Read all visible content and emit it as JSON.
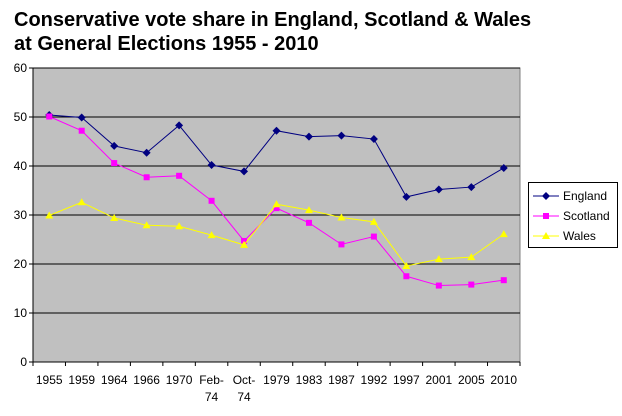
{
  "chart_data": {
    "type": "line",
    "title": "Conservative vote share in England, Scotland & Wales at General Elections 1955 - 2010",
    "title_lines": [
      "Conservative vote share in England, Scotland & Wales",
      "at General Elections 1955 - 2010"
    ],
    "categories": [
      "1955",
      "1959",
      "1964",
      "1966",
      "1970",
      "Feb-74",
      "Oct-74",
      "1979",
      "1983",
      "1987",
      "1992",
      "1997",
      "2001",
      "2005",
      "2010"
    ],
    "category_labels": [
      [
        "1955"
      ],
      [
        "1959"
      ],
      [
        "1964"
      ],
      [
        "1966"
      ],
      [
        "1970"
      ],
      [
        "Feb-",
        "74"
      ],
      [
        "Oct-",
        "74"
      ],
      [
        "1979"
      ],
      [
        "1983"
      ],
      [
        "1987"
      ],
      [
        "1992"
      ],
      [
        "1997"
      ],
      [
        "2001"
      ],
      [
        "2005"
      ],
      [
        "2010"
      ]
    ],
    "ylim": [
      0,
      60
    ],
    "yticks": [
      0,
      10,
      20,
      30,
      40,
      50,
      60
    ],
    "grid": "horizontal",
    "plot_background": "#c0c0c0",
    "legend_position": "right",
    "series": [
      {
        "name": "England",
        "color": "#000080",
        "marker": "diamond",
        "values": [
          50.4,
          49.9,
          44.1,
          42.7,
          48.3,
          40.2,
          38.9,
          47.2,
          46.0,
          46.2,
          45.5,
          33.7,
          35.2,
          35.7,
          39.6
        ]
      },
      {
        "name": "Scotland",
        "color": "#ff00ff",
        "marker": "square",
        "values": [
          50.1,
          47.2,
          40.6,
          37.7,
          38.0,
          32.9,
          24.7,
          31.4,
          28.4,
          24.0,
          25.6,
          17.5,
          15.6,
          15.8,
          16.7
        ]
      },
      {
        "name": "Wales",
        "color": "#ffff00",
        "marker": "triangle",
        "values": [
          29.9,
          32.6,
          29.4,
          27.9,
          27.7,
          25.9,
          23.9,
          32.2,
          31.0,
          29.5,
          28.6,
          19.6,
          21.0,
          21.4,
          26.1
        ]
      }
    ]
  }
}
